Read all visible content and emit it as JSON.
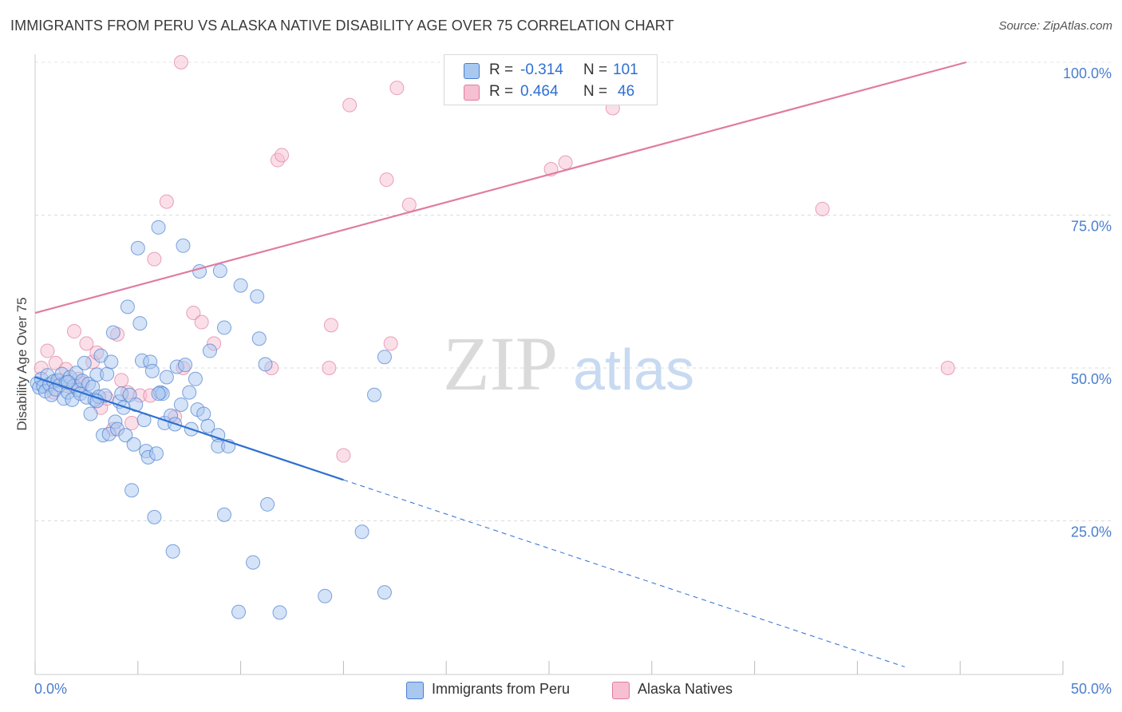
{
  "header": {
    "title": "IMMIGRANTS FROM PERU VS ALASKA NATIVE DISABILITY AGE OVER 75 CORRELATION CHART",
    "source": "Source: ZipAtlas.com"
  },
  "watermark": {
    "zip": "ZIP",
    "atlas": "atlas"
  },
  "legend": {
    "rows": [
      {
        "r_label": "R =",
        "r_value": "-0.314",
        "n_label": "N =",
        "n_value": "101",
        "color": "#a9c8f0",
        "border": "#4a7ed0"
      },
      {
        "r_label": "R =",
        "r_value": "0.464",
        "n_label": "N =",
        "n_value": "46",
        "color": "#f7bfd2",
        "border": "#e07ca0"
      }
    ],
    "bottom": [
      {
        "label": "Immigrants from Peru",
        "color": "#a9c8f0",
        "border": "#4a7ed0"
      },
      {
        "label": "Alaska Natives",
        "color": "#f7bfd2",
        "border": "#e07ca0"
      }
    ]
  },
  "chart_data": {
    "type": "scatter",
    "title": "IMMIGRANTS FROM PERU VS ALASKA NATIVE DISABILITY AGE OVER 75 CORRELATION CHART",
    "xlabel": "",
    "ylabel": "Disability Age Over 75",
    "xlim": [
      0,
      50
    ],
    "ylim": [
      0,
      102
    ],
    "x_tick_labels": [
      "0.0%",
      "50.0%"
    ],
    "y_ticks": [
      25,
      50,
      75,
      100
    ],
    "y_tick_labels": [
      "25.0%",
      "50.0%",
      "75.0%",
      "100.0%"
    ],
    "grid": true,
    "series": [
      {
        "name": "Immigrants from Peru",
        "color": "#4a7ed0",
        "fill": "#a9c8f0",
        "points": [
          [
            0.1,
            47.5
          ],
          [
            0.2,
            46.8
          ],
          [
            0.3,
            48.2
          ],
          [
            0.4,
            47.0
          ],
          [
            0.5,
            46.2
          ],
          [
            0.6,
            48.8
          ],
          [
            0.7,
            47.3
          ],
          [
            0.8,
            45.6
          ],
          [
            0.9,
            47.8
          ],
          [
            1.0,
            46.5
          ],
          [
            1.1,
            48.0
          ],
          [
            1.2,
            47.2
          ],
          [
            1.3,
            49.0
          ],
          [
            1.4,
            45.0
          ],
          [
            1.5,
            47.6
          ],
          [
            1.6,
            46.0
          ],
          [
            1.7,
            48.5
          ],
          [
            1.8,
            44.8
          ],
          [
            1.9,
            47.1
          ],
          [
            2.0,
            49.2
          ],
          [
            2.1,
            46.4
          ],
          [
            2.2,
            45.8
          ],
          [
            2.3,
            47.9
          ],
          [
            2.4,
            50.8
          ],
          [
            2.5,
            45.2
          ],
          [
            2.6,
            47.4
          ],
          [
            2.7,
            42.5
          ],
          [
            2.8,
            46.9
          ],
          [
            2.9,
            44.8
          ],
          [
            3.0,
            48.9
          ],
          [
            3.1,
            45.3
          ],
          [
            3.2,
            52.0
          ],
          [
            3.3,
            39.0
          ],
          [
            3.4,
            45.5
          ],
          [
            3.5,
            49.0
          ],
          [
            3.6,
            39.2
          ],
          [
            3.7,
            51.0
          ],
          [
            3.8,
            55.8
          ],
          [
            3.9,
            41.2
          ],
          [
            4.0,
            40.0
          ],
          [
            4.1,
            44.5
          ],
          [
            4.2,
            45.8
          ],
          [
            4.3,
            43.5
          ],
          [
            4.4,
            39.0
          ],
          [
            4.5,
            60.0
          ],
          [
            4.6,
            45.6
          ],
          [
            4.7,
            30.0
          ],
          [
            4.8,
            37.5
          ],
          [
            4.9,
            44.0
          ],
          [
            5.0,
            69.6
          ],
          [
            5.1,
            57.3
          ],
          [
            5.2,
            51.2
          ],
          [
            5.3,
            41.5
          ],
          [
            5.4,
            36.4
          ],
          [
            5.5,
            35.4
          ],
          [
            5.6,
            51.0
          ],
          [
            5.7,
            49.5
          ],
          [
            5.8,
            25.6
          ],
          [
            5.9,
            36.0
          ],
          [
            6.0,
            73.0
          ],
          [
            6.1,
            46.0
          ],
          [
            6.2,
            45.8
          ],
          [
            6.3,
            41.0
          ],
          [
            6.4,
            48.5
          ],
          [
            6.6,
            42.2
          ],
          [
            6.7,
            20.0
          ],
          [
            6.8,
            40.8
          ],
          [
            6.9,
            50.2
          ],
          [
            7.1,
            44.0
          ],
          [
            7.2,
            70.0
          ],
          [
            7.3,
            50.5
          ],
          [
            7.5,
            46.0
          ],
          [
            7.6,
            40.0
          ],
          [
            7.8,
            48.2
          ],
          [
            7.9,
            43.2
          ],
          [
            8.0,
            65.8
          ],
          [
            8.2,
            42.5
          ],
          [
            8.4,
            40.5
          ],
          [
            8.5,
            52.8
          ],
          [
            8.9,
            39.0
          ],
          [
            8.9,
            37.2
          ],
          [
            9.0,
            65.9
          ],
          [
            9.2,
            56.6
          ],
          [
            9.2,
            26.0
          ],
          [
            9.4,
            37.2
          ],
          [
            9.9,
            10.1
          ],
          [
            10.0,
            63.5
          ],
          [
            10.6,
            18.2
          ],
          [
            10.8,
            61.7
          ],
          [
            10.9,
            54.8
          ],
          [
            11.2,
            50.6
          ],
          [
            11.3,
            27.7
          ],
          [
            11.9,
            10.0
          ],
          [
            14.1,
            12.7
          ],
          [
            15.9,
            23.2
          ],
          [
            16.5,
            45.6
          ],
          [
            17.0,
            13.3
          ],
          [
            17.0,
            51.8
          ],
          [
            6.0,
            45.8
          ],
          [
            3.0,
            44.6
          ],
          [
            1.6,
            47.7
          ]
        ]
      },
      {
        "name": "Alaska Natives",
        "color": "#e07ca0",
        "fill": "#f7bfd2",
        "points": [
          [
            0.3,
            50.0
          ],
          [
            0.6,
            52.8
          ],
          [
            0.9,
            46.0
          ],
          [
            1.0,
            50.8
          ],
          [
            1.2,
            48.0
          ],
          [
            1.5,
            49.8
          ],
          [
            1.8,
            47.0
          ],
          [
            1.9,
            56.0
          ],
          [
            2.1,
            48.2
          ],
          [
            2.3,
            47.5
          ],
          [
            2.5,
            54.0
          ],
          [
            2.8,
            51.0
          ],
          [
            3.0,
            52.5
          ],
          [
            3.2,
            43.5
          ],
          [
            3.5,
            45.0
          ],
          [
            3.8,
            40.0
          ],
          [
            4.0,
            55.5
          ],
          [
            4.2,
            48.0
          ],
          [
            4.5,
            46.0
          ],
          [
            4.7,
            41.0
          ],
          [
            5.1,
            45.5
          ],
          [
            5.6,
            45.5
          ],
          [
            5.8,
            67.8
          ],
          [
            6.4,
            77.2
          ],
          [
            6.8,
            42.0
          ],
          [
            7.2,
            50.0
          ],
          [
            7.7,
            59.0
          ],
          [
            8.1,
            57.5
          ],
          [
            8.7,
            54.0
          ],
          [
            11.5,
            50.0
          ],
          [
            11.8,
            84.0
          ],
          [
            12.0,
            84.8
          ],
          [
            14.4,
            57.0
          ],
          [
            14.3,
            50.0
          ],
          [
            15.0,
            35.7
          ],
          [
            15.3,
            93.0
          ],
          [
            17.1,
            80.8
          ],
          [
            17.3,
            54.0
          ],
          [
            17.6,
            95.8
          ],
          [
            18.2,
            76.7
          ],
          [
            25.1,
            82.5
          ],
          [
            25.8,
            83.6
          ],
          [
            28.1,
            92.5
          ],
          [
            38.3,
            76.0
          ],
          [
            44.4,
            50.0
          ],
          [
            7.1,
            100.0
          ]
        ]
      }
    ],
    "trend_lines": [
      {
        "series": "Immigrants from Peru",
        "solid_x": [
          0,
          15
        ],
        "y_at_0": 48.5,
        "slope": -1.12,
        "dashed_to_x": 42.3
      },
      {
        "series": "Alaska Natives",
        "x": [
          0,
          45.3
        ],
        "y": [
          59.0,
          100.0
        ]
      }
    ]
  }
}
